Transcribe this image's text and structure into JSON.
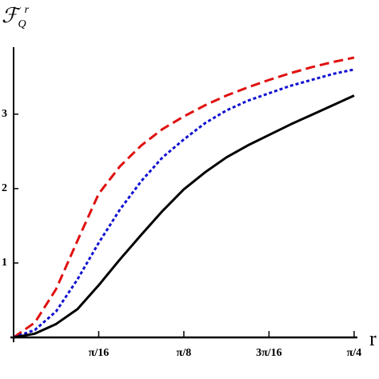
{
  "chart_data": {
    "type": "line",
    "ylabel": "ℱQr",
    "xlabel": "r",
    "x": [
      0,
      0.0491,
      0.0982,
      0.1473,
      0.1963,
      0.2454,
      0.2945,
      0.3436,
      0.3927,
      0.4418,
      0.4909,
      0.54,
      0.589,
      0.6381,
      0.6872,
      0.7363,
      0.7854
    ],
    "series": [
      {
        "color": "#e01010",
        "dash": "dashed",
        "values": [
          0,
          0.2,
          0.65,
          1.3,
          1.93,
          2.3,
          2.58,
          2.8,
          2.97,
          3.12,
          3.25,
          3.36,
          3.46,
          3.55,
          3.63,
          3.7,
          3.76
        ]
      },
      {
        "color": "#1010d0",
        "dash": "dotted",
        "values": [
          0,
          0.1,
          0.35,
          0.78,
          1.27,
          1.72,
          2.1,
          2.42,
          2.66,
          2.88,
          3.05,
          3.18,
          3.28,
          3.38,
          3.46,
          3.54,
          3.6
        ]
      },
      {
        "color": "#000000",
        "dash": "solid",
        "values": [
          0,
          0.05,
          0.18,
          0.38,
          0.7,
          1.05,
          1.38,
          1.7,
          1.99,
          2.22,
          2.42,
          2.58,
          2.72,
          2.86,
          2.99,
          3.12,
          3.25
        ]
      }
    ],
    "xlim": [
      0,
      0.793
    ],
    "ylim": [
      0,
      3.9
    ],
    "xticks": [
      {
        "value": 0.19635,
        "label": "π/16"
      },
      {
        "value": 0.3927,
        "label": "π/8"
      },
      {
        "value": 0.58905,
        "label": "3π/16"
      },
      {
        "value": 0.7854,
        "label": "π/4"
      }
    ],
    "yticks": [
      1,
      2,
      3
    ]
  }
}
